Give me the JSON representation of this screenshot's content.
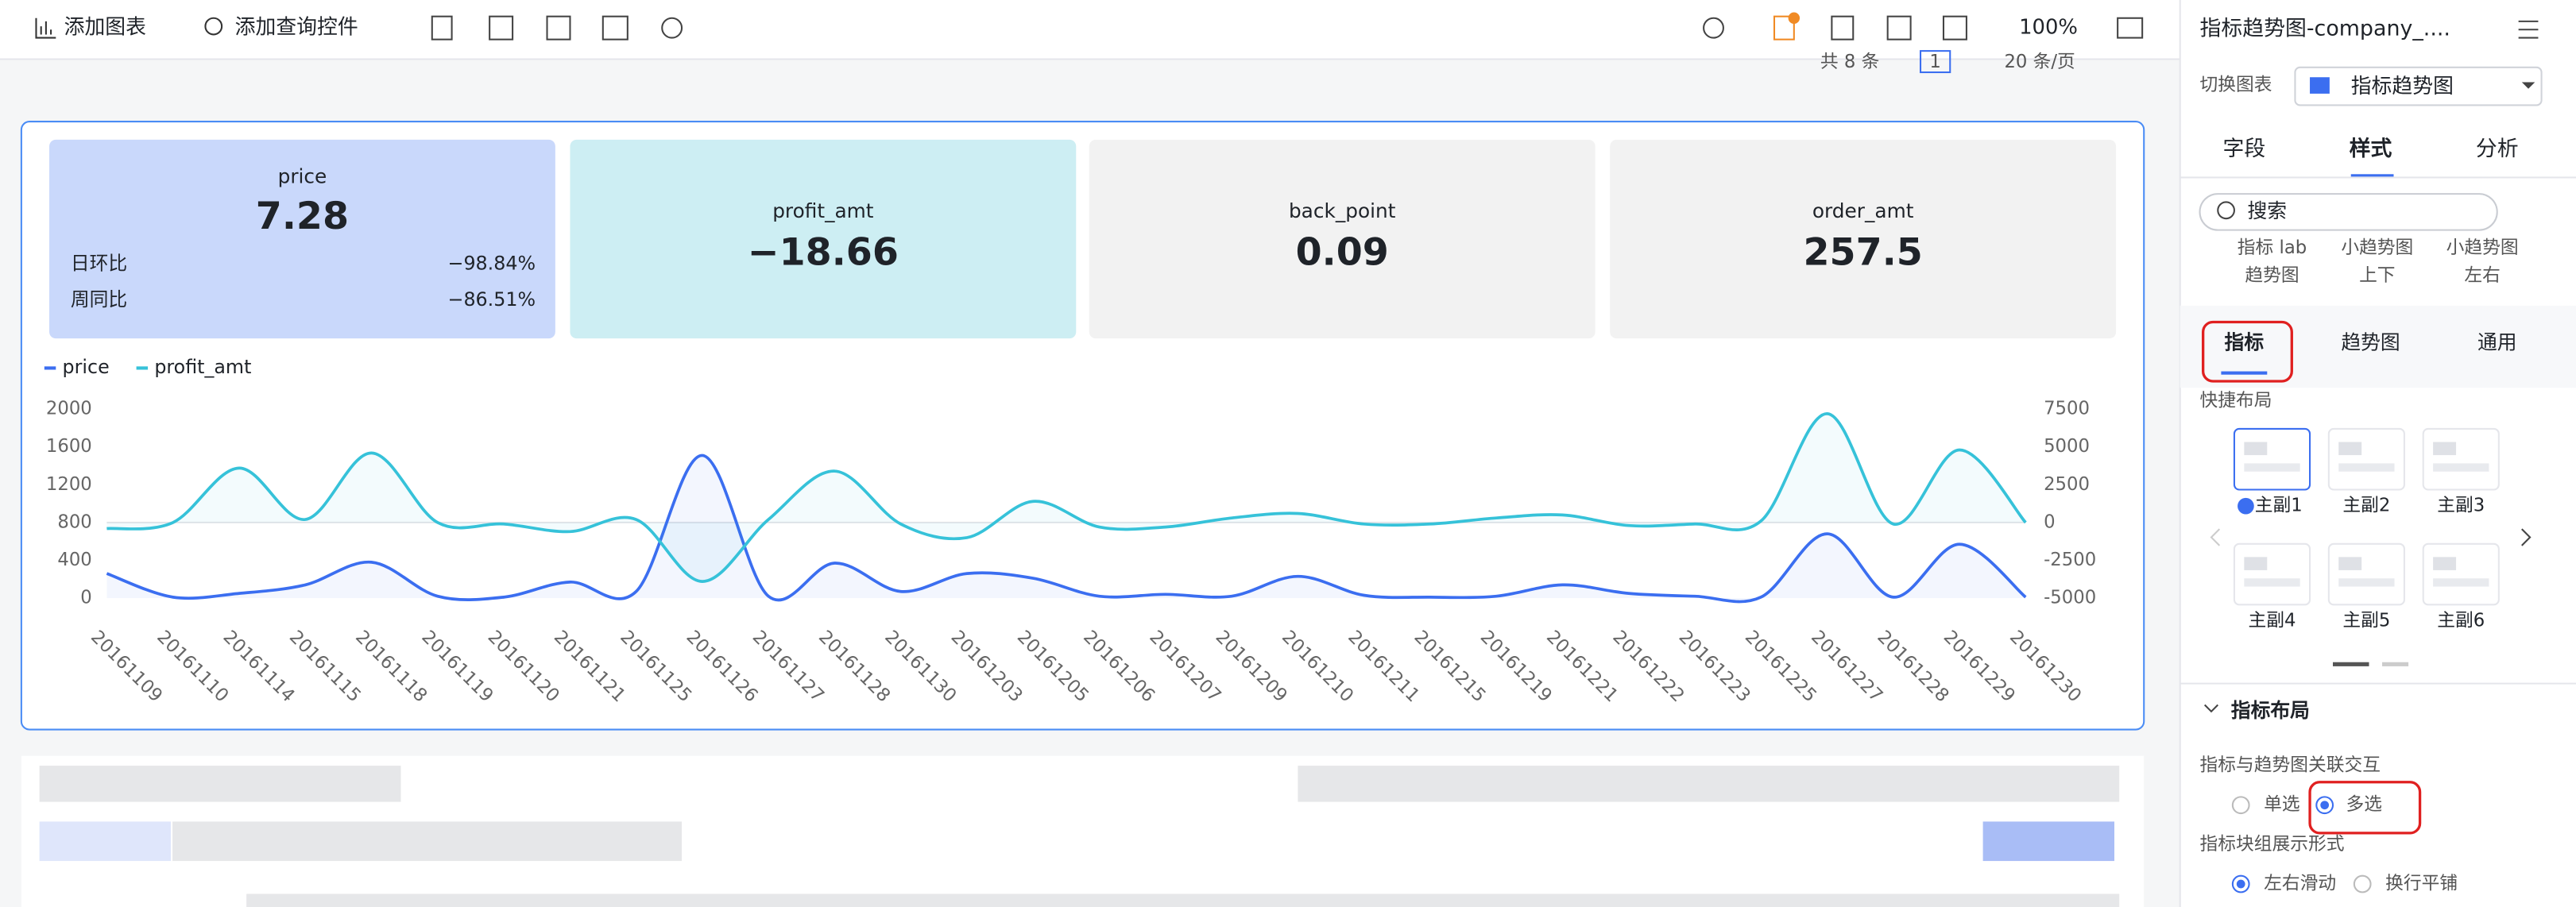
{
  "toolbar": {
    "add_chart": "添加图表",
    "add_query_control": "添加查询控件",
    "zoom": "100%"
  },
  "pager": {
    "total": "共 8 条",
    "page": "1",
    "page_size": "20 条/页"
  },
  "kpis": [
    {
      "name": "price",
      "value": "7.28",
      "compare": [
        {
          "label": "日环比",
          "value": "−98.84%"
        },
        {
          "label": "周同比",
          "value": "−86.51%"
        }
      ]
    },
    {
      "name": "profit_amt",
      "value": "−18.66"
    },
    {
      "name": "back_point",
      "value": "0.09"
    },
    {
      "name": "order_amt",
      "value": "257.5"
    }
  ],
  "chart_data": {
    "type": "line",
    "categories": [
      "20161109",
      "20161110",
      "20161114",
      "20161115",
      "20161118",
      "20161119",
      "20161120",
      "20161121",
      "20161125",
      "20161126",
      "20161127",
      "20161128",
      "20161130",
      "20161203",
      "20161205",
      "20161206",
      "20161207",
      "20161209",
      "20161210",
      "20161211",
      "20161215",
      "20161219",
      "20161221",
      "20161222",
      "20161223",
      "20161225",
      "20161227",
      "20161228",
      "20161229",
      "20161230"
    ],
    "series": [
      {
        "name": "price",
        "color": "#3b6ef0",
        "values": [
          260,
          10,
          50,
          140,
          380,
          20,
          10,
          170,
          70,
          1510,
          20,
          370,
          70,
          260,
          210,
          20,
          40,
          20,
          230,
          30,
          10,
          20,
          140,
          50,
          20,
          10,
          680,
          10,
          570,
          10
        ]
      },
      {
        "name": "profit_amt",
        "color": "#36c2d9",
        "axis": "y2",
        "values": [
          -400,
          0,
          3600,
          200,
          4600,
          0,
          -100,
          -600,
          200,
          -3900,
          200,
          3400,
          -100,
          -1000,
          1400,
          -300,
          -300,
          300,
          600,
          -100,
          -100,
          300,
          500,
          -200,
          -100,
          100,
          7200,
          -100,
          4800,
          0
        ]
      }
    ],
    "ylim": [
      0,
      2000
    ],
    "yticks": [
      0,
      400,
      800,
      1200,
      1600,
      2000
    ],
    "y2lim": [
      -5000,
      7500
    ],
    "y2ticks": [
      -5000,
      -2500,
      0,
      2500,
      5000,
      7500
    ],
    "legend": "top-left"
  },
  "panel": {
    "title": "指标趋势图-company_....",
    "switch_chart": "切换图表",
    "chart_type": "指标趋势图",
    "tabs": [
      "字段",
      "样式",
      "分析"
    ],
    "search": "搜索",
    "style_options": [
      [
        "指标 lab",
        "趋势图"
      ],
      [
        "小趋势图",
        "上下"
      ],
      [
        "小趋势图",
        "左右"
      ]
    ],
    "subtabs": [
      "指标",
      "趋势图",
      "通用"
    ],
    "quick_layout": "快捷布局",
    "layouts": [
      "主副1",
      "主副2",
      "主副3",
      "主副4",
      "主副5",
      "主副6"
    ],
    "indicator_layout": "指标布局",
    "interaction_label": "指标与趋势图关联交互",
    "interaction_options": [
      "单选",
      "多选"
    ],
    "group_display_label": "指标块组展示形式",
    "group_display_options": [
      "左右滑动",
      "换行平铺"
    ]
  }
}
